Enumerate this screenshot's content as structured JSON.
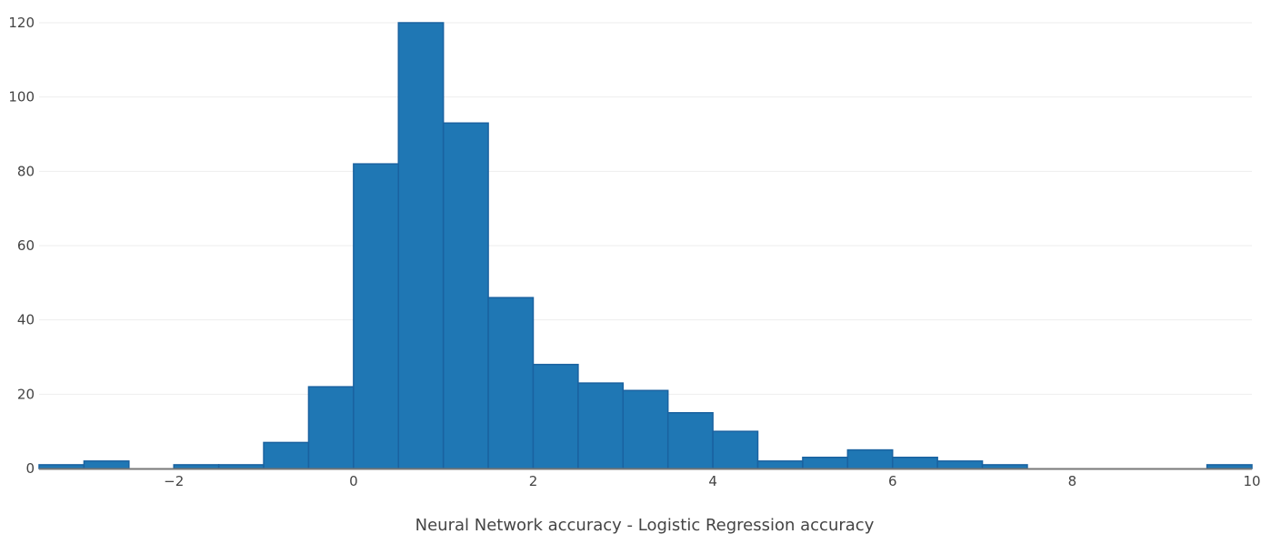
{
  "chart_data": {
    "type": "bar",
    "subtype": "histogram",
    "title": "",
    "xlabel": "Neural Network accuracy - Logistic Regression accuracy",
    "ylabel": "",
    "xlim": [
      -3.5,
      10
    ],
    "ylim": [
      0,
      120
    ],
    "bin_width": 0.5,
    "grid": {
      "y": true,
      "x": false
    },
    "legend": null,
    "bar_color": "#1f77b4",
    "bar_edge_color": "#1a62a0",
    "x_ticks": [
      -2,
      0,
      2,
      4,
      6,
      8,
      10
    ],
    "x_tick_labels": [
      "−2",
      "0",
      "2",
      "4",
      "6",
      "8",
      "10"
    ],
    "y_ticks": [
      0,
      20,
      40,
      60,
      80,
      100,
      120
    ],
    "y_tick_labels": [
      "0",
      "20",
      "40",
      "60",
      "80",
      "100",
      "120"
    ],
    "bins": [
      {
        "start": -3.5,
        "end": -3.0,
        "count": 1
      },
      {
        "start": -3.0,
        "end": -2.5,
        "count": 2
      },
      {
        "start": -2.5,
        "end": -2.0,
        "count": 0
      },
      {
        "start": -2.0,
        "end": -1.5,
        "count": 1
      },
      {
        "start": -1.5,
        "end": -1.0,
        "count": 1
      },
      {
        "start": -1.0,
        "end": -0.5,
        "count": 7
      },
      {
        "start": -0.5,
        "end": 0.0,
        "count": 22
      },
      {
        "start": 0.0,
        "end": 0.5,
        "count": 82
      },
      {
        "start": 0.5,
        "end": 1.0,
        "count": 120
      },
      {
        "start": 1.0,
        "end": 1.5,
        "count": 93
      },
      {
        "start": 1.5,
        "end": 2.0,
        "count": 46
      },
      {
        "start": 2.0,
        "end": 2.5,
        "count": 28
      },
      {
        "start": 2.5,
        "end": 3.0,
        "count": 23
      },
      {
        "start": 3.0,
        "end": 3.5,
        "count": 21
      },
      {
        "start": 3.5,
        "end": 4.0,
        "count": 15
      },
      {
        "start": 4.0,
        "end": 4.5,
        "count": 10
      },
      {
        "start": 4.5,
        "end": 5.0,
        "count": 2
      },
      {
        "start": 5.0,
        "end": 5.5,
        "count": 3
      },
      {
        "start": 5.5,
        "end": 6.0,
        "count": 5
      },
      {
        "start": 6.0,
        "end": 6.5,
        "count": 3
      },
      {
        "start": 6.5,
        "end": 7.0,
        "count": 2
      },
      {
        "start": 7.0,
        "end": 7.5,
        "count": 1
      },
      {
        "start": 7.5,
        "end": 8.0,
        "count": 0
      },
      {
        "start": 8.0,
        "end": 8.5,
        "count": 0
      },
      {
        "start": 8.5,
        "end": 9.0,
        "count": 0
      },
      {
        "start": 9.0,
        "end": 9.5,
        "count": 0
      },
      {
        "start": 9.5,
        "end": 10.0,
        "count": 1
      }
    ]
  }
}
